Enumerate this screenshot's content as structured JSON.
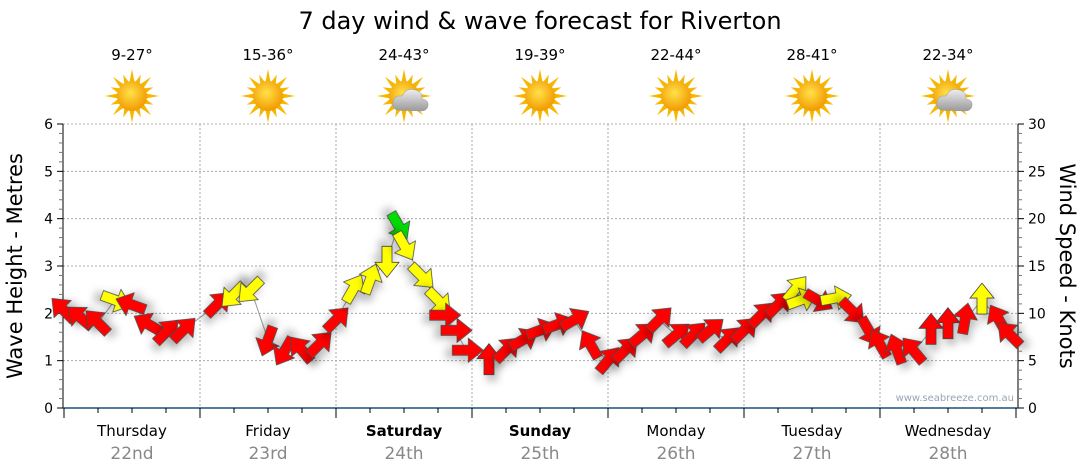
{
  "chart_data": {
    "type": "scatter",
    "title": "7 day wind & wave forecast for Riverton",
    "ylabel": "Wave Height - Metres",
    "y2label": "Wind Speed - Knots",
    "ylim": [
      0,
      6
    ],
    "y2lim": [
      0,
      30
    ],
    "yticks": [
      "0",
      "1",
      "2",
      "3",
      "4",
      "5",
      "6"
    ],
    "y2ticks": [
      "0",
      "5",
      "10",
      "15",
      "20",
      "25",
      "30"
    ],
    "watermark": "www.seabreeze.com.au",
    "days": [
      {
        "name": "Thursday",
        "date": "22nd",
        "temp": "9-27°",
        "icon": "sun",
        "bold": false
      },
      {
        "name": "Friday",
        "date": "23rd",
        "temp": "15-36°",
        "icon": "sun",
        "bold": false
      },
      {
        "name": "Saturday",
        "date": "24th",
        "temp": "24-43°",
        "icon": "partly-cloudy",
        "bold": true
      },
      {
        "name": "Sunday",
        "date": "25th",
        "temp": "19-39°",
        "icon": "sun",
        "bold": true
      },
      {
        "name": "Monday",
        "date": "26th",
        "temp": "22-44°",
        "icon": "sun",
        "bold": false
      },
      {
        "name": "Tuesday",
        "date": "27th",
        "temp": "28-41°",
        "icon": "sun",
        "bold": false
      },
      {
        "name": "Wednesday",
        "date": "28th",
        "temp": "22-34°",
        "icon": "partly-cloudy",
        "bold": false
      }
    ],
    "colors": {
      "light": "#00dd00",
      "moderate": "#ffff00",
      "strong": "#ff0000"
    },
    "wind_points": [
      {
        "h": 0,
        "kn": 10.3,
        "dir": -45,
        "c": "strong"
      },
      {
        "h": 3,
        "kn": 9.5,
        "dir": -50,
        "c": "strong"
      },
      {
        "h": 6,
        "kn": 9,
        "dir": -45,
        "c": "strong"
      },
      {
        "h": 9,
        "kn": 11.4,
        "dir": 110,
        "c": "moderate"
      },
      {
        "h": 12,
        "kn": 10.9,
        "dir": -70,
        "c": "strong"
      },
      {
        "h": 15,
        "kn": 8.8,
        "dir": -60,
        "c": "strong"
      },
      {
        "h": 18,
        "kn": 8,
        "dir": 45,
        "c": "strong"
      },
      {
        "h": 21,
        "kn": 8.2,
        "dir": 45,
        "c": "strong"
      },
      {
        "h": 27,
        "kn": 10.9,
        "dir": 45,
        "c": "strong"
      },
      {
        "h": 30,
        "kn": 12,
        "dir": 225,
        "c": "moderate"
      },
      {
        "h": 33,
        "kn": 12.5,
        "dir": 225,
        "c": "moderate"
      },
      {
        "h": 36,
        "kn": 7.2,
        "dir": 200,
        "c": "strong"
      },
      {
        "h": 39,
        "kn": 6.1,
        "dir": 210,
        "c": "strong"
      },
      {
        "h": 42,
        "kn": 6.1,
        "dir": -40,
        "c": "strong"
      },
      {
        "h": 45,
        "kn": 6.7,
        "dir": 45,
        "c": "strong"
      },
      {
        "h": 48,
        "kn": 9.3,
        "dir": 45,
        "c": "strong"
      },
      {
        "h": 51,
        "kn": 12.5,
        "dir": 30,
        "c": "moderate"
      },
      {
        "h": 54,
        "kn": 13.5,
        "dir": 20,
        "c": "moderate"
      },
      {
        "h": 57,
        "kn": 15.6,
        "dir": 180,
        "c": "moderate"
      },
      {
        "h": 59,
        "kn": 19.3,
        "dir": 150,
        "c": "light"
      },
      {
        "h": 60,
        "kn": 17.2,
        "dir": 150,
        "c": "moderate"
      },
      {
        "h": 63,
        "kn": 14,
        "dir": 135,
        "c": "moderate"
      },
      {
        "h": 66,
        "kn": 11.4,
        "dir": 135,
        "c": "moderate"
      },
      {
        "h": 67,
        "kn": 9.8,
        "dir": 90,
        "c": "strong"
      },
      {
        "h": 69,
        "kn": 8.2,
        "dir": 90,
        "c": "strong"
      },
      {
        "h": 71,
        "kn": 6.1,
        "dir": 90,
        "c": "strong"
      },
      {
        "h": 75,
        "kn": 5,
        "dir": 0,
        "c": "strong"
      },
      {
        "h": 78,
        "kn": 6.1,
        "dir": 45,
        "c": "strong"
      },
      {
        "h": 81,
        "kn": 7.2,
        "dir": 60,
        "c": "strong"
      },
      {
        "h": 84,
        "kn": 8.2,
        "dir": 70,
        "c": "strong"
      },
      {
        "h": 87,
        "kn": 8.8,
        "dir": 70,
        "c": "strong"
      },
      {
        "h": 90,
        "kn": 9.3,
        "dir": 60,
        "c": "strong"
      },
      {
        "h": 93,
        "kn": 6.6,
        "dir": -30,
        "c": "strong"
      },
      {
        "h": 96,
        "kn": 5,
        "dir": 40,
        "c": "strong"
      },
      {
        "h": 99,
        "kn": 6.1,
        "dir": 45,
        "c": "strong"
      },
      {
        "h": 102,
        "kn": 7.7,
        "dir": 50,
        "c": "strong"
      },
      {
        "h": 105,
        "kn": 9.3,
        "dir": 45,
        "c": "strong"
      },
      {
        "h": 108,
        "kn": 7.7,
        "dir": 50,
        "c": "strong"
      },
      {
        "h": 111,
        "kn": 7.7,
        "dir": 45,
        "c": "strong"
      },
      {
        "h": 114,
        "kn": 8.2,
        "dir": 50,
        "c": "strong"
      },
      {
        "h": 117,
        "kn": 7.2,
        "dir": 45,
        "c": "strong"
      },
      {
        "h": 120,
        "kn": 8.2,
        "dir": 45,
        "c": "strong"
      },
      {
        "h": 123,
        "kn": 9.8,
        "dir": 45,
        "c": "strong"
      },
      {
        "h": 126,
        "kn": 10.9,
        "dir": 45,
        "c": "strong"
      },
      {
        "h": 129,
        "kn": 12.5,
        "dir": 40,
        "c": "moderate"
      },
      {
        "h": 130,
        "kn": 11.4,
        "dir": 70,
        "c": "moderate"
      },
      {
        "h": 133,
        "kn": 11.4,
        "dir": 120,
        "c": "strong"
      },
      {
        "h": 136,
        "kn": 11.6,
        "dir": 80,
        "c": "moderate"
      },
      {
        "h": 139,
        "kn": 10.3,
        "dir": 135,
        "c": "strong"
      },
      {
        "h": 142,
        "kn": 8.2,
        "dir": 150,
        "c": "strong"
      },
      {
        "h": 144,
        "kn": 6.7,
        "dir": -30,
        "c": "strong"
      },
      {
        "h": 147,
        "kn": 6.1,
        "dir": -20,
        "c": "strong"
      },
      {
        "h": 150,
        "kn": 6,
        "dir": -40,
        "c": "strong"
      },
      {
        "h": 153,
        "kn": 8.2,
        "dir": 0,
        "c": "strong"
      },
      {
        "h": 156,
        "kn": 8.8,
        "dir": 0,
        "c": "strong"
      },
      {
        "h": 159,
        "kn": 9.3,
        "dir": 10,
        "c": "strong"
      },
      {
        "h": 162,
        "kn": 11.4,
        "dir": 0,
        "c": "moderate"
      },
      {
        "h": 165,
        "kn": 9.3,
        "dir": -30,
        "c": "strong"
      },
      {
        "h": 167,
        "kn": 7.7,
        "dir": -45,
        "c": "strong"
      }
    ]
  }
}
